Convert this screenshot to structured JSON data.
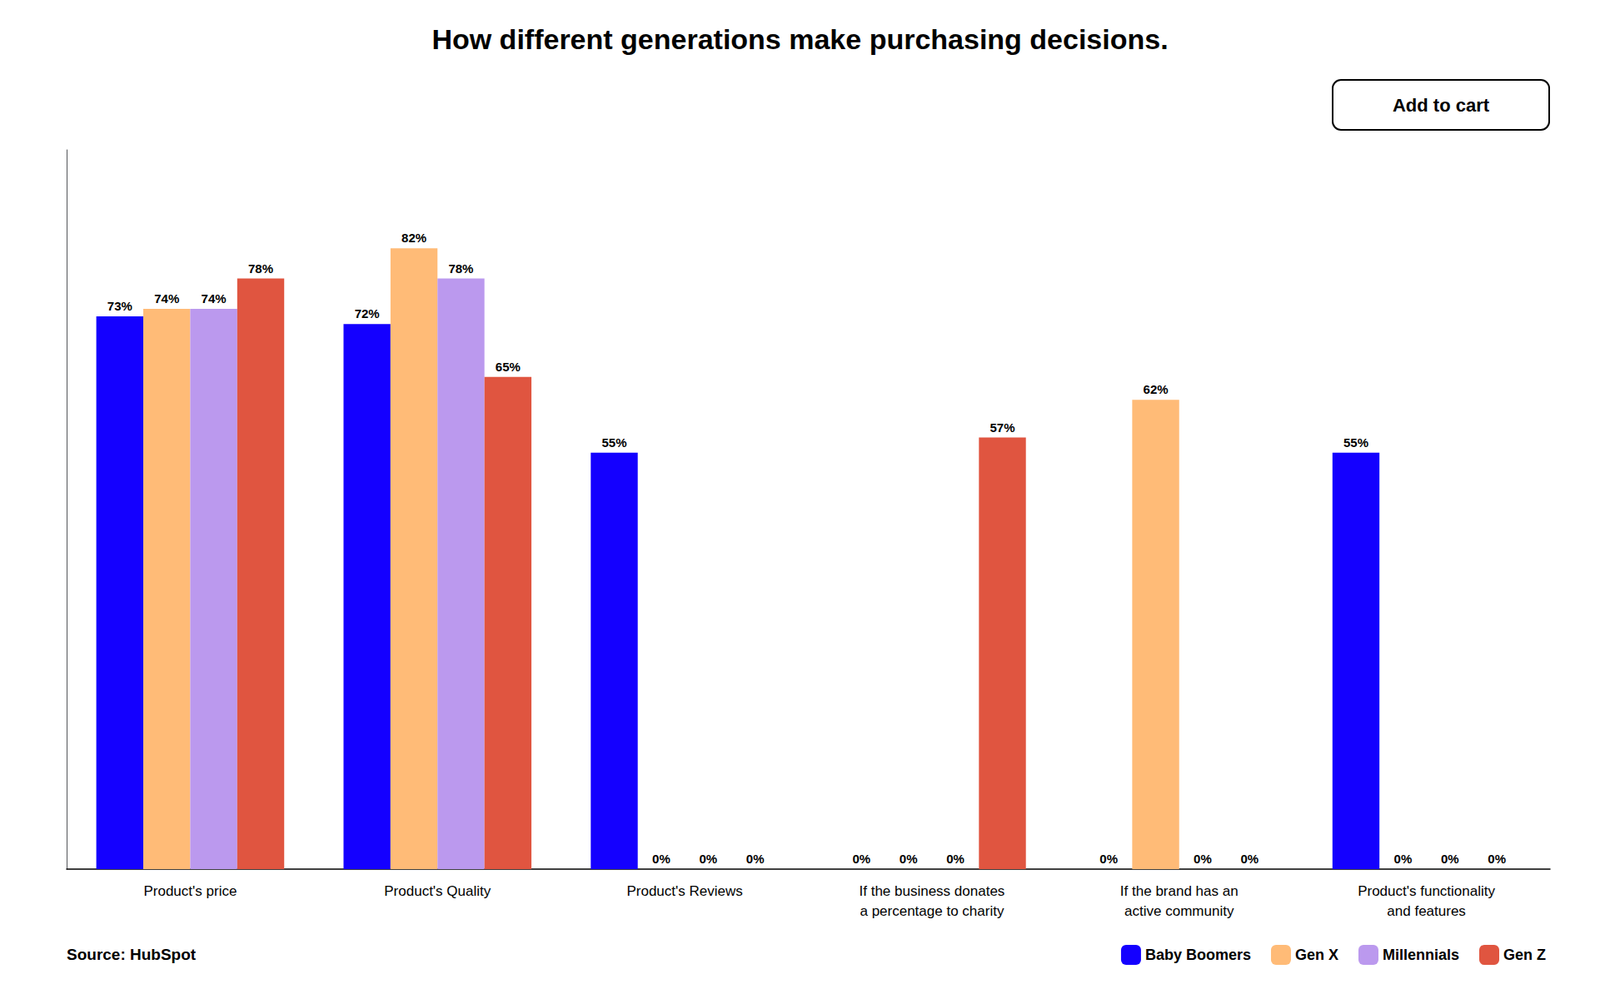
{
  "chart_data": {
    "type": "bar",
    "title": "How different generations make purchasing decisions.",
    "categories": [
      "Product's price",
      "Product's Quality",
      "Product's Reviews",
      "If the business donates\na percentage to charity",
      "If the brand has an\nactive community",
      "Product's functionality\nand features"
    ],
    "series": [
      {
        "name": "Baby Boomers",
        "color": "#1400FF",
        "values": [
          73,
          72,
          55,
          0,
          0,
          55
        ],
        "value_labels": [
          "73%",
          "72%",
          "55%",
          "0%",
          "0%",
          "55%"
        ]
      },
      {
        "name": "Gen X",
        "color": "#FFBB77",
        "values": [
          74,
          82,
          0,
          0,
          62,
          0
        ],
        "value_labels": [
          "74%",
          "82%",
          "0%",
          "0%",
          "62%",
          "0%"
        ]
      },
      {
        "name": "Millennials",
        "color": "#BB99EE",
        "values": [
          74,
          78,
          0,
          0,
          0,
          0
        ],
        "value_labels": [
          "74%",
          "78%",
          "0%",
          "0%",
          "0%",
          "0%"
        ]
      },
      {
        "name": "Gen Z",
        "color": "#E05540",
        "values": [
          78,
          65,
          0,
          57,
          0,
          0
        ],
        "value_labels": [
          "78%",
          "65%",
          "0%",
          "57%",
          "0%",
          "0%"
        ]
      }
    ],
    "ylim": [
      0,
      95
    ],
    "yticks": [],
    "tick_labels": "x",
    "grid": false,
    "legend": "lower right",
    "data_labels": true,
    "annotations": [
      "Source: HubSpot",
      "Add to cart"
    ]
  }
}
